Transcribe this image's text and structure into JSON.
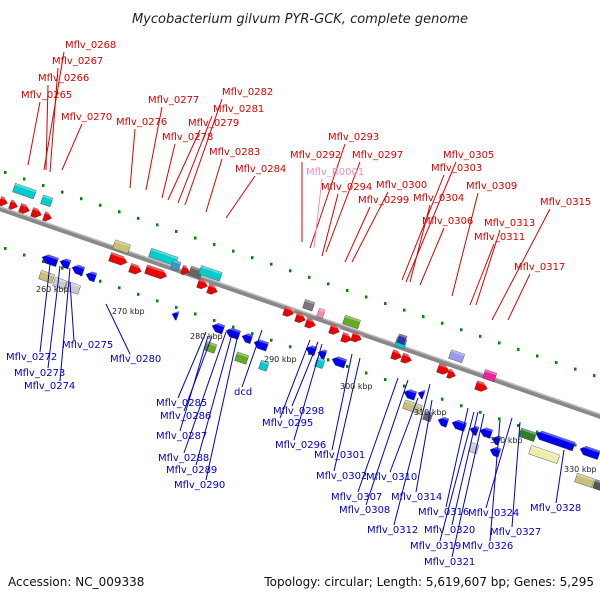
{
  "title": "Mycobacterium gilvum PYR-GCK, complete genome",
  "footer": {
    "accession": "Accession: NC_009338",
    "summary": "Topology: circular; Length: 5,619,607 bp; Genes: 5,295"
  },
  "colors": {
    "forward_label": "#dd0000",
    "reverse_label": "#0000cc",
    "rna_label": "#ff88bb",
    "backbone": "#888888",
    "tick": "#008800"
  },
  "kbp_labels": [
    "260 kbp",
    "270 kbp",
    "280 kbp",
    "290 kbp",
    "300 kbp",
    "310 kbp",
    "320 kbp",
    "330 kbp"
  ],
  "forward_genes": [
    "Mflv_0268",
    "Mflv_0267",
    "Mflv_0266",
    "Mflv_0265",
    "Mflv_0270",
    "Mflv_0277",
    "Mflv_0276",
    "Mflv_0282",
    "Mflv_0281",
    "Mflv_0279",
    "Mflv_0278",
    "Mflv_0283",
    "Mflv_0284",
    "Mflv_0293",
    "Mflv_0292",
    "Mflv_0297",
    "Mflv_0294",
    "Mflv_0299",
    "Mflv_0300",
    "Mflv_0305",
    "Mflv_0303",
    "Mflv_0304",
    "Mflv_0306",
    "Mflv_0309",
    "Mflv_0313",
    "Mflv_0311",
    "Mflv_0315",
    "Mflv_0317"
  ],
  "rna_genes": [
    "Mflv_R0001"
  ],
  "reverse_genes": [
    "Mflv_0275",
    "Mflv_0272",
    "Mflv_0273",
    "Mflv_0274",
    "Mflv_0280",
    "Mflv_0285",
    "Mflv_0286",
    "Mflv_0287",
    "Mflv_0288",
    "Mflv_0289",
    "Mflv_0290",
    "dcd",
    "Mflv_0298",
    "Mflv_0295",
    "Mflv_0296",
    "Mflv_0301",
    "Mflv_0302",
    "Mflv_0310",
    "Mflv_0307",
    "Mflv_0314",
    "Mflv_0308",
    "Mflv_0316",
    "Mflv_0324",
    "Mflv_0312",
    "Mflv_0320",
    "Mflv_0327",
    "Mflv_0319",
    "Mflv_0326",
    "Mflv_0321",
    "Mflv_0328"
  ]
}
